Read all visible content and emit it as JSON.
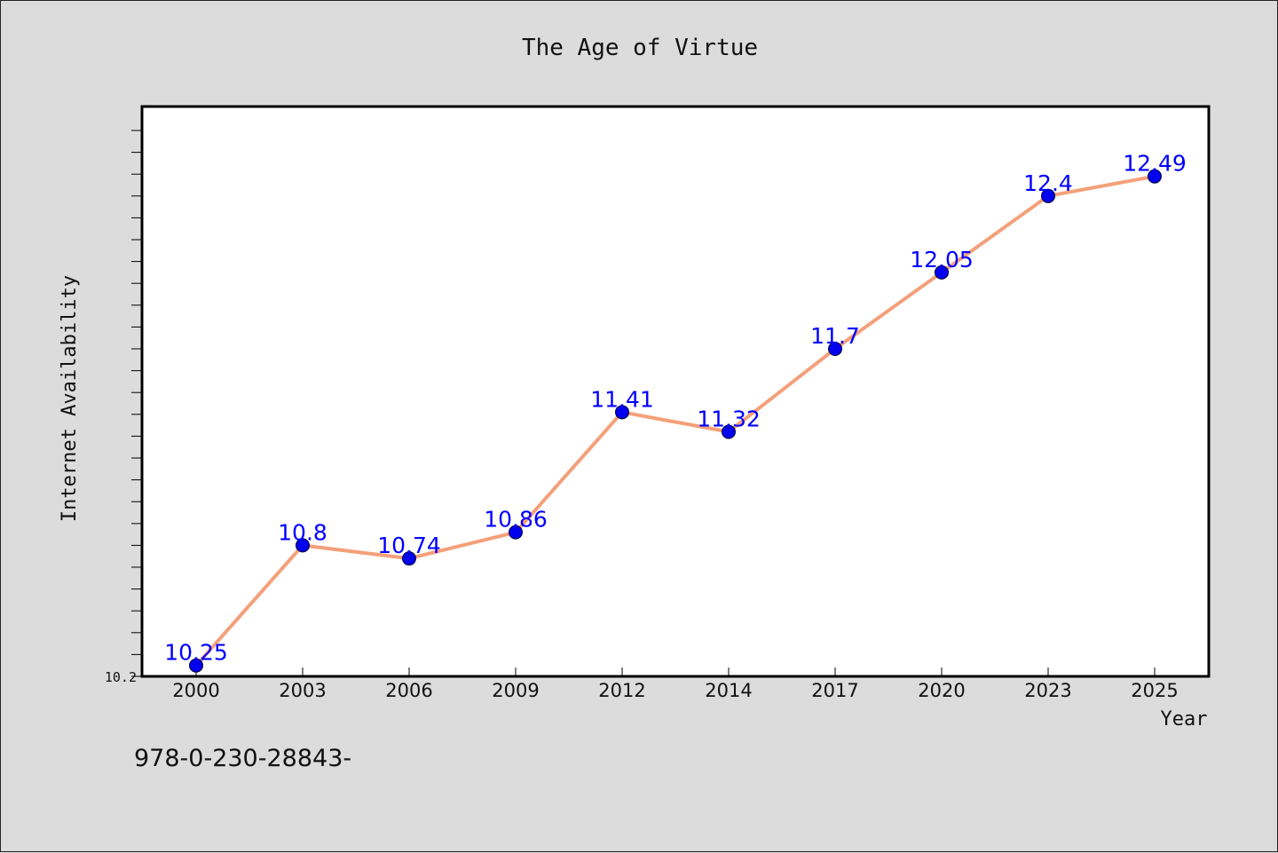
{
  "chart_data": {
    "type": "line",
    "title": "The Age of Virtue",
    "xlabel": "Year",
    "ylabel": "Internet Availability",
    "categories": [
      "2000",
      "2003",
      "2006",
      "2009",
      "2012",
      "2014",
      "2017",
      "2020",
      "2023",
      "2025"
    ],
    "series": [
      {
        "values": [
          10.25,
          10.8,
          10.74,
          10.86,
          11.41,
          11.32,
          11.7,
          12.05,
          12.4,
          12.49
        ],
        "labels": [
          "10.25",
          "10.8",
          "10.74",
          "10.86",
          "11.41",
          "11.32",
          "11.7",
          "12.05",
          "12.4",
          "12.49"
        ]
      }
    ],
    "ylim": [
      10.2,
      12.8
    ],
    "yticks_labeled": [
      "10.2"
    ],
    "grid": false,
    "legend": "none",
    "colors": {
      "line": "#f4a07a",
      "marker": "#0000ee",
      "data_label": "#0000ff",
      "background": "#dcdcdc",
      "plot_background": "#ffffff"
    }
  },
  "footer_text": "978-0-230-28843-"
}
